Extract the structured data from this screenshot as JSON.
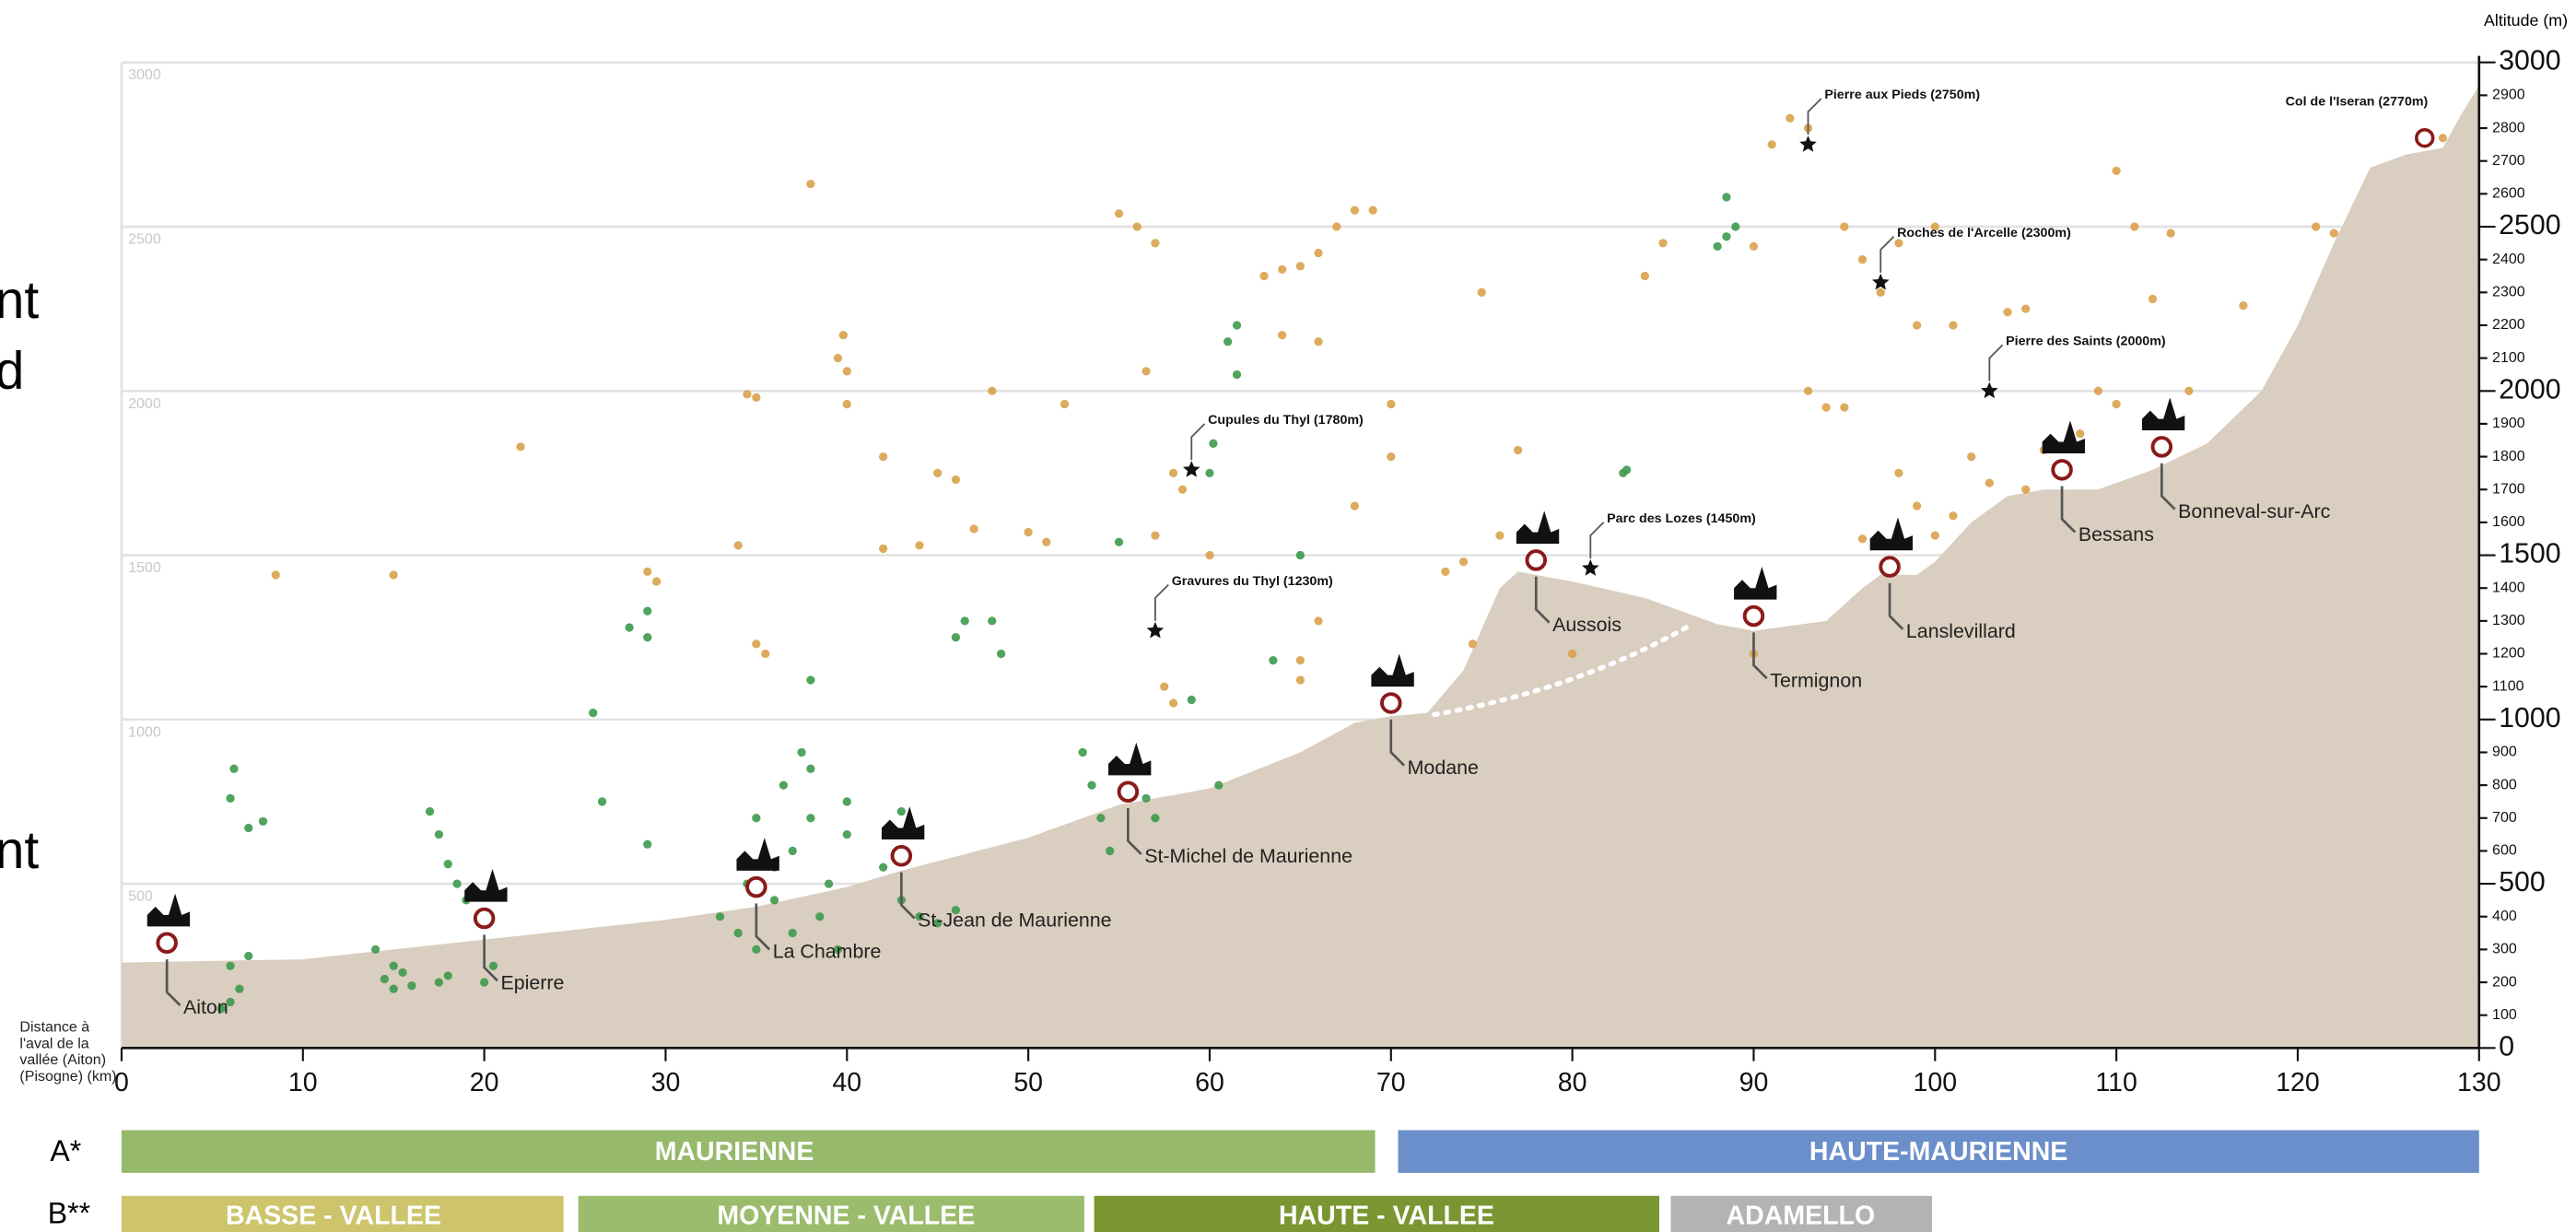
{
  "left_fragments": [
    "nt",
    "d",
    "nt"
  ],
  "chart_data": {
    "type": "profile",
    "y_axis_label": "Altitude (m)",
    "x_axis_label": "Distance à l'aval de la vallée (Aiton) (Pisogne) (km)",
    "xlim": [
      0,
      130
    ],
    "xticks": [
      0,
      10,
      20,
      30,
      40,
      50,
      60,
      70,
      80,
      90,
      100,
      110,
      120,
      130
    ],
    "ylim": [
      0,
      3000
    ],
    "yticks": [
      0,
      100,
      200,
      300,
      400,
      500,
      600,
      700,
      800,
      900,
      1000,
      1100,
      1200,
      1300,
      1400,
      1500,
      1600,
      1700,
      1800,
      1900,
      2000,
      2100,
      2200,
      2300,
      2400,
      2500,
      2600,
      2700,
      2800,
      2900,
      3000
    ],
    "grid": true,
    "terrain": {
      "color": "#d9cebf",
      "x": [
        0,
        10,
        20,
        30,
        35,
        40,
        43,
        50,
        55,
        60,
        65,
        68,
        70,
        72,
        74,
        76,
        77,
        80,
        84,
        88,
        90,
        94,
        96,
        97,
        99,
        100,
        102,
        104,
        106,
        109,
        112,
        115,
        118,
        120,
        122,
        124,
        126,
        128,
        129,
        130
      ],
      "values": [
        260,
        270,
        330,
        390,
        430,
        490,
        540,
        640,
        740,
        790,
        900,
        990,
        1010,
        1020,
        1150,
        1400,
        1450,
        1420,
        1370,
        1290,
        1270,
        1300,
        1400,
        1440,
        1440,
        1480,
        1600,
        1680,
        1700,
        1700,
        1760,
        1840,
        2000,
        2200,
        2450,
        2680,
        2720,
        2740,
        2840,
        2930
      ]
    },
    "series": [
      {
        "color": "#3d9a4c",
        "x": [
          5.5,
          6,
          6.5,
          6,
          7,
          6.2,
          6,
          7,
          7.8,
          14.5,
          15,
          15.5,
          16,
          15,
          14,
          17,
          17.5,
          18,
          18.5,
          19,
          17.5,
          18,
          20,
          20.5,
          26,
          26.5,
          28,
          29,
          29,
          29,
          33,
          34,
          35,
          36,
          37,
          38,
          38,
          39,
          37,
          36,
          35,
          39.5,
          40,
          38.5,
          34.5,
          36.5,
          37.5,
          40,
          38,
          42,
          43,
          44,
          43,
          45,
          46,
          46,
          46.5,
          48,
          48.5,
          53,
          53.5,
          54,
          54.5,
          55,
          56.5,
          57,
          60,
          60.2,
          59,
          60.5,
          55,
          61.5,
          61,
          61.5,
          63.5,
          65,
          83,
          82.8,
          88.5,
          88.5,
          89,
          88
        ],
        "values": [
          120,
          140,
          180,
          250,
          280,
          850,
          760,
          670,
          690,
          210,
          180,
          230,
          190,
          250,
          300,
          720,
          650,
          560,
          500,
          450,
          200,
          220,
          200,
          250,
          1020,
          750,
          1280,
          1330,
          1250,
          620,
          400,
          350,
          300,
          450,
          600,
          700,
          850,
          500,
          350,
          550,
          700,
          300,
          650,
          400,
          500,
          800,
          900,
          750,
          1120,
          550,
          450,
          400,
          720,
          380,
          420,
          1250,
          1300,
          1300,
          1200,
          900,
          800,
          700,
          600,
          860,
          760,
          700,
          1750,
          1840,
          1060,
          800,
          1540,
          2050,
          2150,
          2200,
          1180,
          1500,
          1760,
          1750,
          2470,
          2590,
          2500,
          2440
        ]
      },
      {
        "color": "#d9a24c",
        "x": [
          8.5,
          15,
          22,
          29,
          29.5,
          34,
          34.5,
          35,
          35,
          35.5,
          38,
          40,
          39.5,
          39.8,
          40,
          42,
          42,
          44,
          45,
          46,
          47,
          48,
          50,
          51,
          52,
          55,
          56,
          56.5,
          57,
          57,
          58,
          58.5,
          57.5,
          58,
          60,
          63,
          64,
          65,
          66,
          67,
          68,
          69,
          64,
          66,
          65,
          65,
          66,
          68,
          70,
          70,
          73,
          74,
          74.5,
          75,
          76,
          77,
          80,
          84,
          85,
          90,
          91,
          92,
          93,
          95,
          96,
          97,
          98,
          99,
          100,
          101,
          93,
          94,
          95,
          96,
          98,
          99,
          100,
          101,
          102,
          103,
          105,
          104,
          105,
          106,
          108,
          109,
          110,
          110,
          111,
          112,
          113,
          114,
          117,
          121,
          122,
          128,
          90
        ],
        "values": [
          1440,
          1440,
          1830,
          1450,
          1420,
          1530,
          1990,
          1980,
          1230,
          1200,
          2630,
          2060,
          2100,
          2170,
          1960,
          1800,
          1520,
          1530,
          1750,
          1730,
          1580,
          2000,
          1570,
          1540,
          1960,
          2540,
          2500,
          2060,
          2450,
          1560,
          1750,
          1700,
          1100,
          1050,
          1500,
          2350,
          2370,
          2380,
          2420,
          2500,
          2550,
          2550,
          2170,
          2150,
          1180,
          1120,
          1300,
          1650,
          1960,
          1800,
          1450,
          1480,
          1230,
          2300,
          1560,
          1820,
          1200,
          2350,
          2450,
          2440,
          2750,
          2830,
          2800,
          2500,
          2400,
          2300,
          2450,
          2200,
          2500,
          2200,
          2000,
          1950,
          1950,
          1550,
          1750,
          1650,
          1560,
          1620,
          1800,
          1720,
          1700,
          2240,
          2250,
          1820,
          1870,
          2000,
          1960,
          2670,
          2500,
          2280,
          2480,
          2000,
          2260,
          2500,
          2480,
          2770,
          1200
        ]
      }
    ],
    "villages": [
      {
        "label": "Aiton",
        "x": 2.5,
        "value": 320
      },
      {
        "label": "Epierre",
        "x": 20,
        "value": 395
      },
      {
        "label": "La Chambre",
        "x": 35,
        "value": 490
      },
      {
        "label": "St-Jean de Maurienne",
        "x": 43,
        "value": 585
      },
      {
        "label": "St-Michel de Maurienne",
        "x": 55.5,
        "value": 780
      },
      {
        "label": "Modane",
        "x": 70,
        "value": 1050
      },
      {
        "label": "Aussois",
        "x": 78,
        "value": 1485
      },
      {
        "label": "Termignon",
        "x": 90,
        "value": 1315
      },
      {
        "label": "Lanslevillard",
        "x": 97.5,
        "value": 1465
      },
      {
        "label": "Bessans",
        "x": 107,
        "value": 1760
      },
      {
        "label": "Bonneval-sur-Arc",
        "x": 112.5,
        "value": 1830
      }
    ],
    "sites": [
      {
        "label": "Pierre aux Pieds (2750m)",
        "x": 93,
        "value": 2750
      },
      {
        "label": "Roches de l'Arcelle (2300m)",
        "x": 97,
        "value": 2330
      },
      {
        "label": "Pierre des Saints (2000m)",
        "x": 103,
        "value": 2000
      },
      {
        "label": "Cupules du Thyl (1780m)",
        "x": 59,
        "value": 1760
      },
      {
        "label": "Gravures du Thyl (1230m)",
        "x": 57,
        "value": 1270
      },
      {
        "label": "Parc des Lozes (1450m)",
        "x": 81,
        "value": 1460
      }
    ],
    "summit": {
      "label": "Col de l'Iseran (2770m)",
      "x": 127,
      "value": 2770
    }
  },
  "zones": {
    "a": {
      "label": "A*",
      "sections": [
        "MAURIENNE",
        "HAUTE-MAURIENNE"
      ]
    },
    "b": {
      "label": "B**",
      "sections": [
        "BASSE - VALLEE",
        "MOYENNE - VALLEE",
        "HAUTE - VALLEE",
        "ADAMELLO"
      ]
    }
  }
}
